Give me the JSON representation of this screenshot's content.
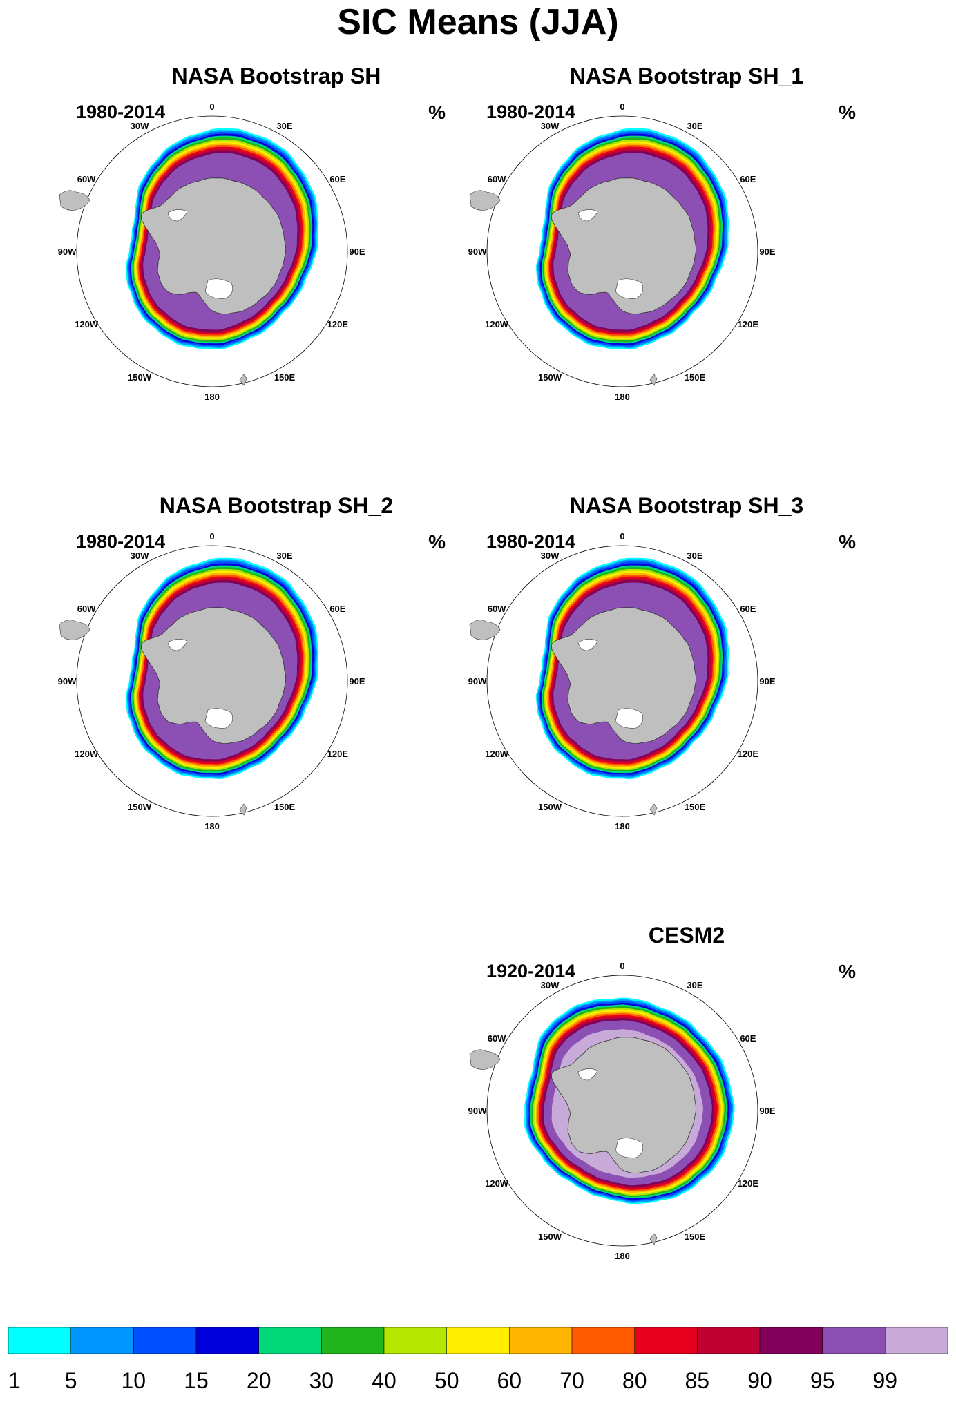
{
  "figure_title": "SIC Means (JJA)",
  "unit": "%",
  "lon_labels": [
    "0",
    "30E",
    "60E",
    "90E",
    "120E",
    "150E",
    "180",
    "150W",
    "120W",
    "90W",
    "60W",
    "30W"
  ],
  "colorbar": {
    "levels": [
      "1",
      "5",
      "10",
      "15",
      "20",
      "30",
      "40",
      "50",
      "60",
      "70",
      "80",
      "85",
      "90",
      "95",
      "99"
    ],
    "colors": [
      "#00ffff",
      "#0096ff",
      "#0050ff",
      "#0000dc",
      "#00d87a",
      "#22b41c",
      "#b4e600",
      "#ffee00",
      "#ffb400",
      "#ff5a00",
      "#e6001e",
      "#be0032",
      "#82005a",
      "#8c50b4",
      "#c8aad8"
    ]
  },
  "chart_data": [
    {
      "type": "heatmap",
      "title": "NASA Bootstrap SH",
      "period": "1980-2014",
      "unit": "%",
      "region": "Southern Hemisphere polar stereographic",
      "variable": "sea ice concentration"
    },
    {
      "type": "heatmap",
      "title": "NASA Bootstrap SH_1",
      "period": "1980-2014",
      "unit": "%",
      "region": "Southern Hemisphere polar stereographic",
      "variable": "sea ice concentration"
    },
    {
      "type": "heatmap",
      "title": "NASA Bootstrap SH_2",
      "period": "1980-2014",
      "unit": "%",
      "region": "Southern Hemisphere polar stereographic",
      "variable": "sea ice concentration"
    },
    {
      "type": "heatmap",
      "title": "NASA Bootstrap SH_3",
      "period": "1980-2014",
      "unit": "%",
      "region": "Southern Hemisphere polar stereographic",
      "variable": "sea ice concentration"
    },
    {
      "type": "heatmap",
      "title": "CESM2",
      "period": "1920-2014",
      "unit": "%",
      "region": "Southern Hemisphere polar stereographic",
      "variable": "sea ice concentration"
    }
  ]
}
